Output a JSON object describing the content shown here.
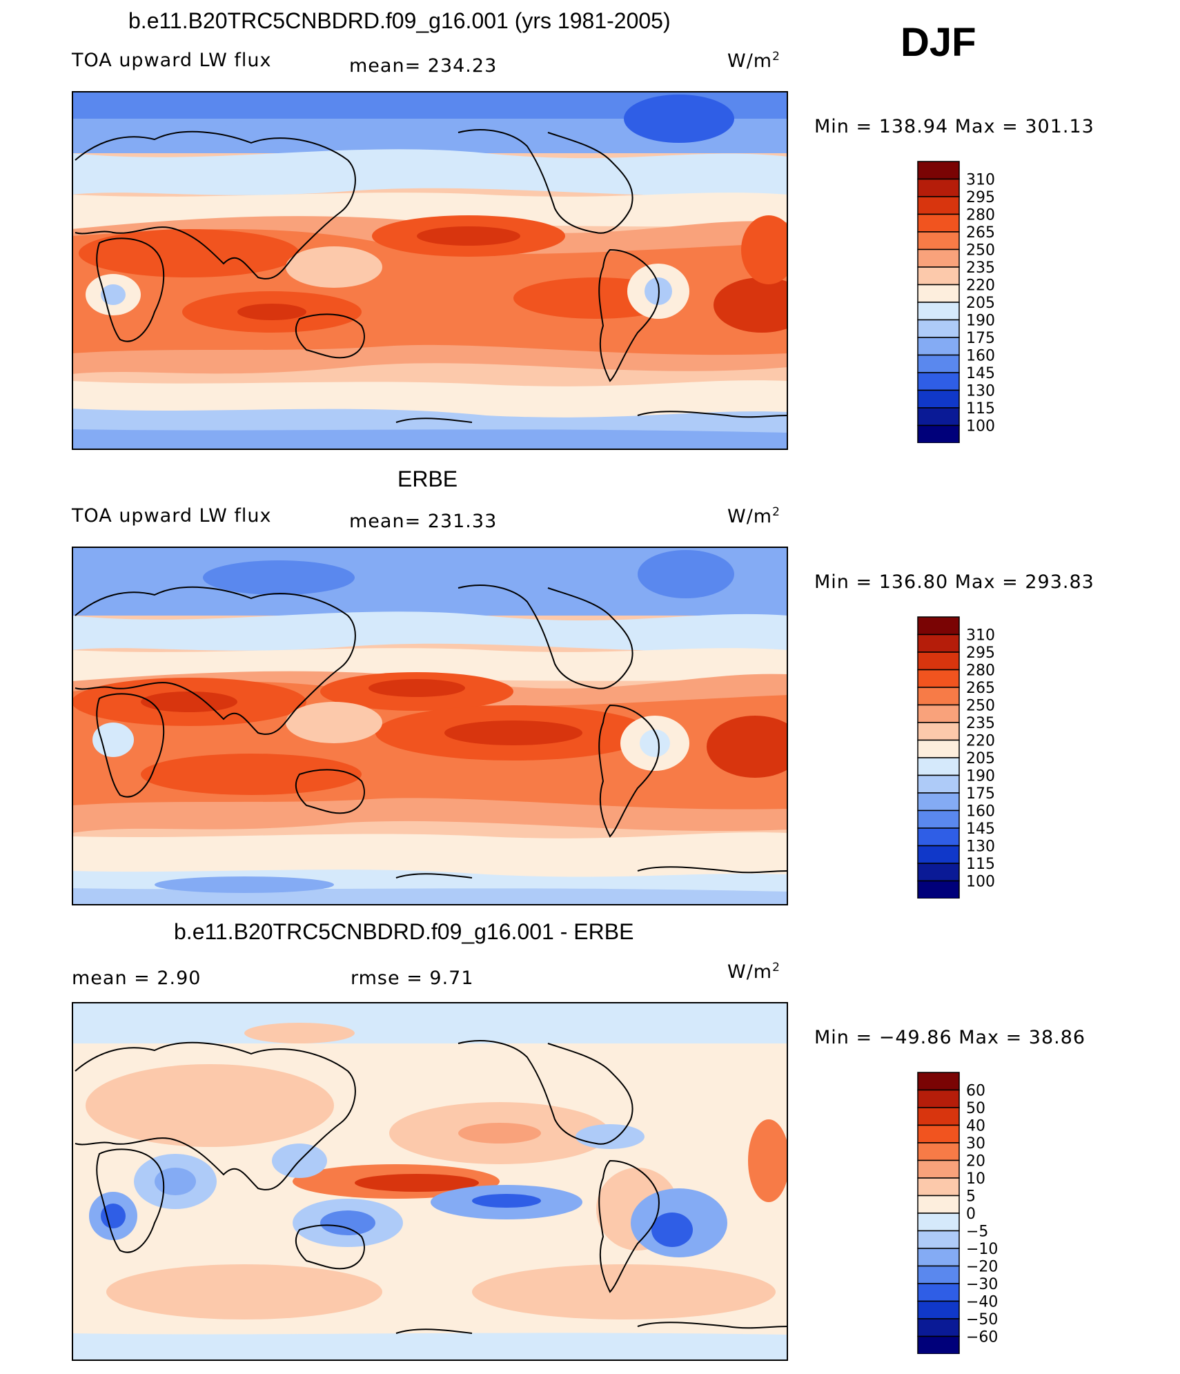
{
  "season": "DJF",
  "panels": [
    {
      "title": "b.e11.B20TRC5CNBDRD.f09_g16.001 (yrs 1981-2005)",
      "left_label": "TOA upward LW flux",
      "center_label": "mean= 234.23",
      "units_base": "W/m",
      "units_exp": "2",
      "minmax": "Min  =  138.94  Max  =  301.13",
      "levels": [
        "310",
        "295",
        "280",
        "265",
        "250",
        "235",
        "220",
        "205",
        "190",
        "175",
        "160",
        "145",
        "130",
        "115",
        "100"
      ]
    },
    {
      "title": "ERBE",
      "left_label": "TOA upward LW flux",
      "center_label": "mean= 231.33",
      "units_base": "W/m",
      "units_exp": "2",
      "minmax": "Min  =  136.80  Max  =  293.83",
      "levels": [
        "310",
        "295",
        "280",
        "265",
        "250",
        "235",
        "220",
        "205",
        "190",
        "175",
        "160",
        "145",
        "130",
        "115",
        "100"
      ]
    },
    {
      "title": "b.e11.B20TRC5CNBDRD.f09_g16.001 - ERBE",
      "left_label": "mean  =     2.90",
      "center_label": "rmse  =     9.71",
      "units_base": "W/m",
      "units_exp": "2",
      "minmax": "Min  =  −49.86  Max  =     38.86",
      "levels": [
        "60",
        "50",
        "40",
        "30",
        "20",
        "10",
        "5",
        "0",
        "−5",
        "−10",
        "−20",
        "−30",
        "−40",
        "−50",
        "−60"
      ]
    }
  ],
  "colors": {
    "abs_scale": [
      "#7a0404",
      "#b51d0a",
      "#d8350e",
      "#f1541f",
      "#f77b47",
      "#f9a27b",
      "#fcc9ab",
      "#fdeedd",
      "#d5e9fb",
      "#aecbf8",
      "#84abf4",
      "#5a88ee",
      "#2f5ee6",
      "#1038c9",
      "#0a1a96",
      "#00007a"
    ],
    "diff_scale": [
      "#7a0404",
      "#b51d0a",
      "#d8350e",
      "#f1541f",
      "#f77b47",
      "#f9a27b",
      "#fcc9ab",
      "#fdeedd",
      "#d5e9fb",
      "#aecbf8",
      "#84abf4",
      "#5a88ee",
      "#2f5ee6",
      "#1038c9",
      "#0a1a96",
      "#00007a"
    ]
  }
}
